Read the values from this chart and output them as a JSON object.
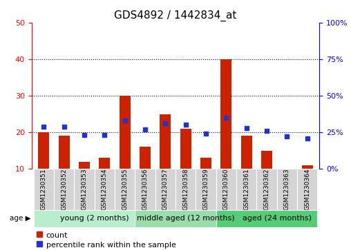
{
  "title": "GDS4892 / 1442834_at",
  "samples": [
    "GSM1230351",
    "GSM1230352",
    "GSM1230353",
    "GSM1230354",
    "GSM1230355",
    "GSM1230356",
    "GSM1230357",
    "GSM1230358",
    "GSM1230359",
    "GSM1230360",
    "GSM1230361",
    "GSM1230362",
    "GSM1230363",
    "GSM1230364"
  ],
  "counts": [
    20,
    19,
    12,
    13,
    30,
    16,
    25,
    21,
    13,
    40,
    19,
    15,
    10,
    11
  ],
  "percentiles": [
    29,
    29,
    23,
    23,
    33,
    27,
    31,
    30,
    24,
    35,
    28,
    26,
    22,
    21
  ],
  "ylim_left": [
    10,
    50
  ],
  "ylim_right": [
    0,
    100
  ],
  "yticks_left": [
    10,
    20,
    30,
    40,
    50
  ],
  "yticks_right": [
    0,
    25,
    50,
    75,
    100
  ],
  "ytick_labels_right": [
    "0%",
    "25%",
    "50%",
    "75%",
    "100%"
  ],
  "bar_color": "#cc2200",
  "scatter_color": "#2233cc",
  "bar_bottom": 10,
  "groups": [
    {
      "label": "young (2 months)",
      "start": 0,
      "end": 5,
      "color": "#b8eecc"
    },
    {
      "label": "middle aged (12 months)",
      "start": 5,
      "end": 9,
      "color": "#99ddaa"
    },
    {
      "label": "aged (24 months)",
      "start": 9,
      "end": 14,
      "color": "#55cc77"
    }
  ],
  "sample_box_color": "#d4d4d4",
  "age_label": "age",
  "legend_count_label": "count",
  "legend_percentile_label": "percentile rank within the sample",
  "title_fontsize": 11,
  "tick_fontsize": 8,
  "sample_fontsize": 6.5,
  "group_fontsize": 8,
  "legend_fontsize": 8
}
